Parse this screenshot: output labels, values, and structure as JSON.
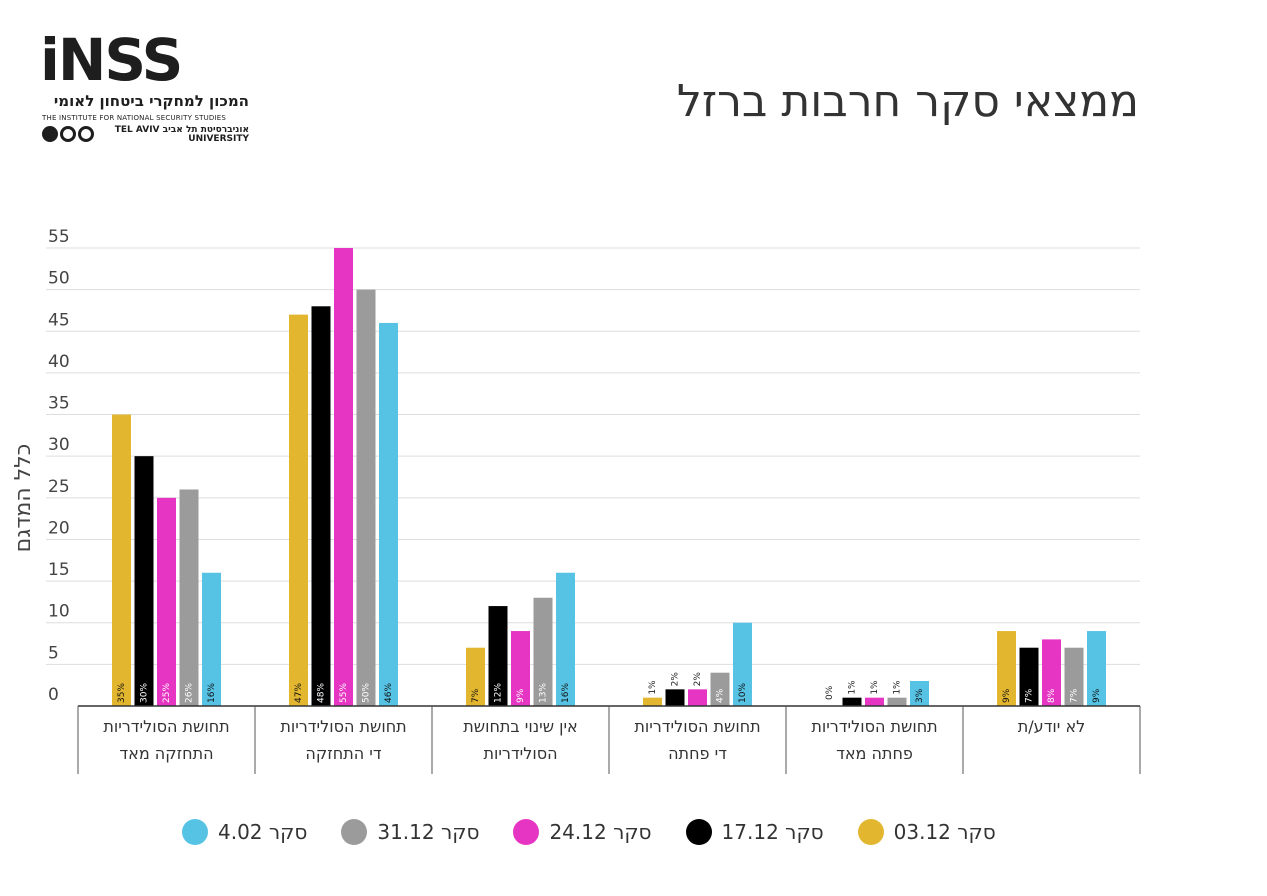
{
  "logo": {
    "word": "iNSS",
    "hebrew": "המכון למחקרי ביטחון לאומי",
    "english": "THE INSTITUTE FOR NATIONAL SECURITY STUDIES",
    "univ_he": "אוניברסיטת תל אביב",
    "univ_en_1": "TEL AVIV",
    "univ_en_2": "UNIVERSITY"
  },
  "title": "ממצאי סקר חרבות ברזל",
  "chart_data": {
    "type": "bar",
    "ylabel": "כלל המדגם",
    "ylim": [
      0,
      55
    ],
    "yticks": [
      0,
      5,
      10,
      15,
      20,
      25,
      30,
      35,
      40,
      45,
      50,
      55
    ],
    "grid": true,
    "legend": "bottom",
    "categories": [
      [
        "תחושת הסולידריות",
        "התחזקה מאד"
      ],
      [
        "תחושת הסולידריות",
        "די התחזקה"
      ],
      [
        "אין שינוי בתחושת",
        "הסולידריות"
      ],
      [
        "תחושת הסולידריות",
        "די פחתה"
      ],
      [
        "תחושת הסולידריות",
        "פחתה מאד"
      ],
      [
        "לא יודע/ת"
      ]
    ],
    "series": [
      {
        "name": "סקר 03.12",
        "color": "#e3b62f",
        "values": [
          35,
          47,
          7,
          1,
          0,
          9
        ],
        "labels": [
          "35%",
          "47%",
          "7%",
          "1%",
          "",
          "9%"
        ]
      },
      {
        "name": "סקר 17.12",
        "color": "#000000",
        "values": [
          30,
          48,
          12,
          2,
          1,
          7
        ],
        "labels": [
          "30%",
          "48%",
          "12%",
          "2%",
          "1%",
          "7%"
        ]
      },
      {
        "name": "סקר 24.12",
        "color": "#e535c2",
        "values": [
          25,
          55,
          9,
          2,
          1,
          8
        ],
        "labels": [
          "25%",
          "55%",
          "9%",
          "2%",
          "1%",
          "8%"
        ]
      },
      {
        "name": "סקר 31.12",
        "color": "#9b9b9b",
        "values": [
          26,
          50,
          13,
          4,
          1,
          7
        ],
        "labels": [
          "26%",
          "50%",
          "13%",
          "4%",
          "1%",
          "7%"
        ]
      },
      {
        "name": "סקר 4.02",
        "color": "#56c3e5",
        "values": [
          16,
          46,
          16,
          10,
          3,
          9
        ],
        "labels": [
          "16%",
          "46%",
          "16%",
          "10%",
          "3%",
          "9%"
        ]
      }
    ],
    "extra_labels": [
      {
        "category": 4,
        "series": 0,
        "text": "0%"
      }
    ]
  }
}
